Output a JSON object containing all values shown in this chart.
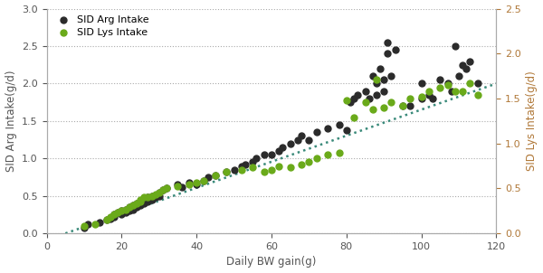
{
  "arg_x": [
    10,
    11,
    14,
    16,
    17,
    18,
    18,
    19,
    20,
    20,
    21,
    21,
    22,
    22,
    23,
    23,
    24,
    24,
    25,
    25,
    25,
    26,
    26,
    27,
    27,
    28,
    28,
    29,
    30,
    30,
    31,
    32,
    35,
    36,
    38,
    40,
    42,
    43,
    45,
    48,
    50,
    52,
    53,
    55,
    56,
    58,
    60,
    62,
    63,
    65,
    67,
    68,
    70,
    72,
    75,
    78,
    80,
    81,
    82,
    83,
    85,
    86,
    87,
    88,
    88,
    89,
    90,
    90,
    91,
    91,
    92,
    93,
    95,
    97,
    100,
    100,
    102,
    103,
    105,
    107,
    108,
    109,
    110,
    111,
    112,
    113,
    115
  ],
  "arg_y": [
    0.08,
    0.12,
    0.15,
    0.18,
    0.2,
    0.22,
    0.25,
    0.28,
    0.25,
    0.3,
    0.28,
    0.32,
    0.3,
    0.35,
    0.32,
    0.38,
    0.35,
    0.4,
    0.38,
    0.4,
    0.42,
    0.4,
    0.45,
    0.42,
    0.48,
    0.45,
    0.5,
    0.48,
    0.5,
    0.55,
    0.58,
    0.6,
    0.65,
    0.62,
    0.68,
    0.65,
    0.7,
    0.75,
    0.78,
    0.82,
    0.85,
    0.9,
    0.92,
    0.95,
    1.0,
    1.05,
    1.05,
    1.1,
    1.15,
    1.2,
    1.25,
    1.3,
    1.25,
    1.35,
    1.4,
    1.45,
    1.38,
    1.75,
    1.8,
    1.85,
    1.9,
    1.8,
    2.1,
    2.0,
    1.85,
    2.2,
    1.9,
    2.05,
    2.4,
    2.55,
    2.1,
    2.45,
    1.7,
    1.7,
    1.8,
    2.0,
    1.85,
    1.8,
    2.05,
    2.0,
    1.9,
    2.5,
    2.1,
    2.25,
    2.2,
    2.3,
    2.0
  ],
  "lys_x": [
    10,
    13,
    16,
    17,
    18,
    19,
    20,
    21,
    22,
    23,
    24,
    25,
    25,
    26,
    27,
    28,
    29,
    30,
    31,
    32,
    35,
    38,
    40,
    42,
    45,
    48,
    52,
    55,
    58,
    60,
    62,
    65,
    68,
    70,
    72,
    75,
    78,
    80,
    82,
    85,
    87,
    88,
    90,
    92,
    95,
    97,
    100,
    102,
    105,
    107,
    109,
    111,
    113,
    115
  ],
  "lys_y": [
    0.1,
    0.12,
    0.18,
    0.22,
    0.25,
    0.28,
    0.3,
    0.32,
    0.35,
    0.38,
    0.4,
    0.42,
    0.45,
    0.48,
    0.48,
    0.5,
    0.52,
    0.55,
    0.58,
    0.6,
    0.63,
    0.65,
    0.68,
    0.7,
    0.78,
    0.82,
    0.85,
    0.88,
    0.82,
    0.85,
    0.9,
    0.88,
    0.92,
    0.95,
    1.0,
    1.05,
    1.08,
    1.78,
    1.55,
    1.75,
    1.65,
    2.05,
    1.68,
    1.75,
    1.7,
    1.8,
    1.82,
    1.9,
    1.95,
    1.98,
    1.9,
    1.9,
    2.0,
    1.85
  ],
  "arg_color": "#2b2b2b",
  "lys_color": "#6aaa1a",
  "trend_color": "#3a8a7a",
  "xlabel": "Daily BW gain(g)",
  "ylabel_left": "SID Arg Intake(g/d)",
  "ylabel_right": "SID Lys Intake(g/d)",
  "legend_arg": "SID Arg Intake",
  "legend_lys": "SID Lys Intake",
  "xlim": [
    0,
    120
  ],
  "ylim_left": [
    0.0,
    3.0
  ],
  "ylim_right": [
    0.0,
    2.5
  ],
  "xticks": [
    0,
    20,
    40,
    60,
    80,
    100,
    120
  ],
  "yticks_left": [
    0.0,
    0.5,
    1.0,
    1.5,
    2.0,
    2.5,
    3.0
  ],
  "yticks_right": [
    0.0,
    0.5,
    1.0,
    1.5,
    2.0,
    2.5
  ],
  "marker_size": 5,
  "grid_color": "#aaaaaa",
  "left_label_color": "#555555",
  "right_label_color": "#b07838",
  "spine_color": "#aaaaaa",
  "trend_start_x": 5,
  "trend_end_x": 120,
  "trend_start_y": 0.0,
  "trend_end_y": 2.0
}
